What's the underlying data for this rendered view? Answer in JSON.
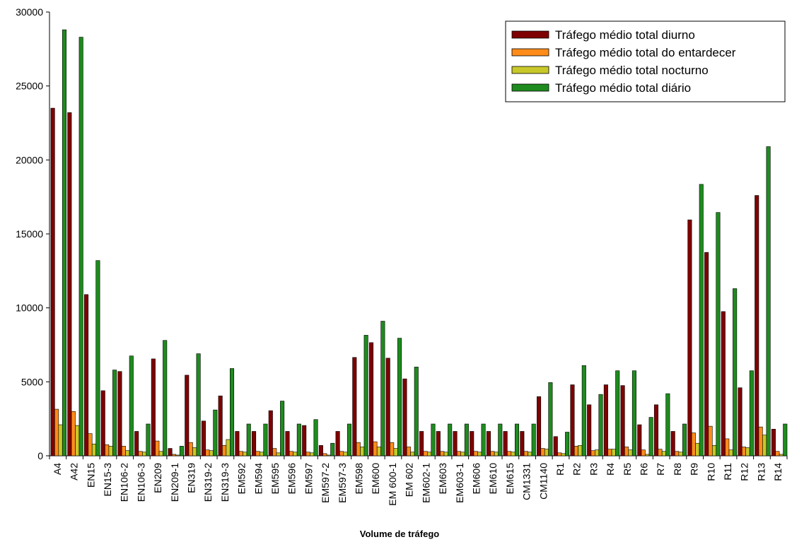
{
  "chart_data": {
    "type": "bar",
    "title": "",
    "xlabel": "Volume de tráfego",
    "ylabel": "",
    "ylim": [
      0,
      30000
    ],
    "yticks": [
      0,
      5000,
      10000,
      15000,
      20000,
      25000,
      30000
    ],
    "grid": false,
    "legend_position": "top-right",
    "categories": [
      "A4",
      "A42",
      "EN15",
      "EN15-3",
      "EN106-2",
      "EN106-3",
      "EN209",
      "EN209-1",
      "EN319",
      "EN319-2",
      "EN319-3",
      "EM592",
      "EM594",
      "EM595",
      "EM596",
      "EM597",
      "EM597-2",
      "EM597-3",
      "EM598",
      "EM600",
      "EM 600-1",
      "EM 602",
      "EM602-1",
      "EM603",
      "EM603-1",
      "EM606",
      "EM610",
      "EM615",
      "CM1331",
      "CM1140",
      "R1",
      "R2",
      "R3",
      "R4",
      "R5",
      "R6",
      "R7",
      "R8",
      "R9",
      "R10",
      "R11",
      "R12",
      "R13",
      "R14"
    ],
    "series": [
      {
        "name": "Tráfego médio total diurno",
        "color": "#7f0000",
        "values": [
          23500,
          23200,
          10900,
          4400,
          5700,
          1650,
          6550,
          500,
          5450,
          2350,
          4050,
          1650,
          1650,
          3050,
          1650,
          2050,
          700,
          1650,
          6650,
          7650,
          6600,
          5200,
          1650,
          1650,
          1650,
          1650,
          1650,
          1650,
          1650,
          4000,
          1300,
          4800,
          3450,
          4800,
          4750,
          2100,
          3450,
          1650,
          15950,
          13750,
          9750,
          4600,
          17600,
          1800
        ]
      },
      {
        "name": "Tráfego médio total do entardecer",
        "color": "#ff8c1a",
        "values": [
          3150,
          3000,
          1500,
          750,
          650,
          300,
          1000,
          100,
          900,
          400,
          700,
          300,
          300,
          500,
          300,
          250,
          150,
          300,
          900,
          950,
          900,
          600,
          300,
          300,
          300,
          300,
          300,
          300,
          300,
          500,
          200,
          650,
          350,
          450,
          600,
          400,
          450,
          300,
          1550,
          2000,
          1150,
          600,
          1950,
          300
        ]
      },
      {
        "name": "Tráfego médio total nocturno",
        "color": "#c8c82a",
        "values": [
          2100,
          2050,
          800,
          650,
          350,
          250,
          300,
          50,
          550,
          350,
          1100,
          250,
          250,
          200,
          250,
          200,
          50,
          250,
          600,
          600,
          500,
          250,
          250,
          250,
          250,
          250,
          250,
          250,
          250,
          450,
          150,
          700,
          400,
          450,
          400,
          100,
          300,
          250,
          850,
          700,
          400,
          550,
          1400,
          100
        ]
      },
      {
        "name": "Tráfego médio total diário",
        "color": "#1e8b1e",
        "values": [
          28800,
          28300,
          13200,
          5800,
          6750,
          2150,
          7800,
          650,
          6900,
          3100,
          5900,
          2150,
          2150,
          3700,
          2150,
          2450,
          850,
          2150,
          8150,
          9100,
          7950,
          6000,
          2150,
          2150,
          2150,
          2150,
          2150,
          2150,
          2150,
          4950,
          1600,
          6100,
          4150,
          5750,
          5750,
          2600,
          4200,
          2150,
          18350,
          16450,
          11300,
          5750,
          20900,
          2150
        ]
      }
    ]
  }
}
